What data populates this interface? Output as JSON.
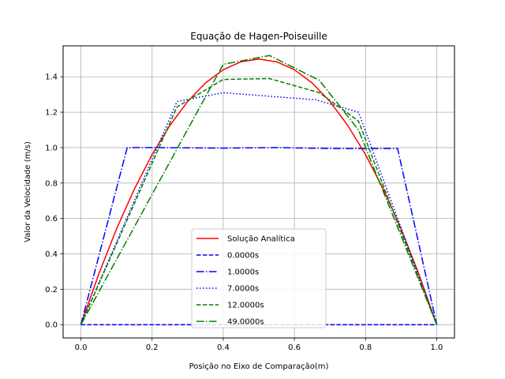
{
  "chart_data": {
    "type": "line",
    "title": "Equação de Hagen-Poiseuille",
    "xlabel": "Posição no Eixo de Comparação(m)",
    "ylabel": "Valor da Velocidade (m/s)",
    "xlim": [
      -0.05,
      1.05
    ],
    "ylim": [
      -0.075,
      1.575
    ],
    "xticks": [
      0.0,
      0.2,
      0.4,
      0.6,
      0.8,
      1.0
    ],
    "xtick_labels": [
      "0.0",
      "0.2",
      "0.4",
      "0.6",
      "0.8",
      "1.0"
    ],
    "yticks": [
      0.0,
      0.2,
      0.4,
      0.6,
      0.8,
      1.0,
      1.2,
      1.4
    ],
    "ytick_labels": [
      "0.0",
      "0.2",
      "0.4",
      "0.6",
      "0.8",
      "1.0",
      "1.2",
      "1.4"
    ],
    "grid": true,
    "legend_position": "lower-center",
    "series": [
      {
        "name": "Solução Analítica",
        "color": "#ff0000",
        "style": "solid",
        "x": [
          0.0,
          0.05,
          0.1,
          0.15,
          0.2,
          0.25,
          0.3,
          0.35,
          0.4,
          0.45,
          0.5,
          0.55,
          0.6,
          0.65,
          0.7,
          0.75,
          0.8,
          0.85,
          0.9,
          0.95,
          1.0
        ],
        "y": [
          0.0,
          0.285,
          0.54,
          0.765,
          0.96,
          1.125,
          1.26,
          1.365,
          1.44,
          1.485,
          1.5,
          1.485,
          1.44,
          1.365,
          1.26,
          1.125,
          0.96,
          0.765,
          0.54,
          0.285,
          0.0
        ]
      },
      {
        "name": "0.0000s",
        "color": "#0000ff",
        "style": "dashed",
        "x": [
          0.0,
          1.0
        ],
        "y": [
          0.0,
          0.0
        ]
      },
      {
        "name": "1.0000s",
        "color": "#0000ff",
        "style": "dashdot",
        "x": [
          0.0,
          0.13,
          0.2,
          0.4,
          0.55,
          0.7,
          0.89,
          1.0
        ],
        "y": [
          0.0,
          1.0,
          1.0,
          0.997,
          1.0,
          0.995,
          0.995,
          0.0
        ]
      },
      {
        "name": "7.0000s",
        "color": "#0000ff",
        "style": "dotted",
        "x": [
          0.0,
          0.27,
          0.4,
          0.66,
          0.78,
          1.0
        ],
        "y": [
          0.0,
          1.26,
          1.31,
          1.27,
          1.2,
          0.0
        ]
      },
      {
        "name": "12.0000s",
        "color": "#008000",
        "style": "dashed",
        "x": [
          0.0,
          0.27,
          0.4,
          0.53,
          0.67,
          0.78,
          1.0
        ],
        "y": [
          0.0,
          1.23,
          1.385,
          1.39,
          1.31,
          1.15,
          0.0
        ]
      },
      {
        "name": "49.0000s",
        "color": "#008000",
        "style": "dashdot",
        "x": [
          0.0,
          0.4,
          0.53,
          0.67,
          0.78,
          1.0
        ],
        "y": [
          0.0,
          1.47,
          1.52,
          1.38,
          1.1,
          0.0
        ]
      }
    ]
  }
}
